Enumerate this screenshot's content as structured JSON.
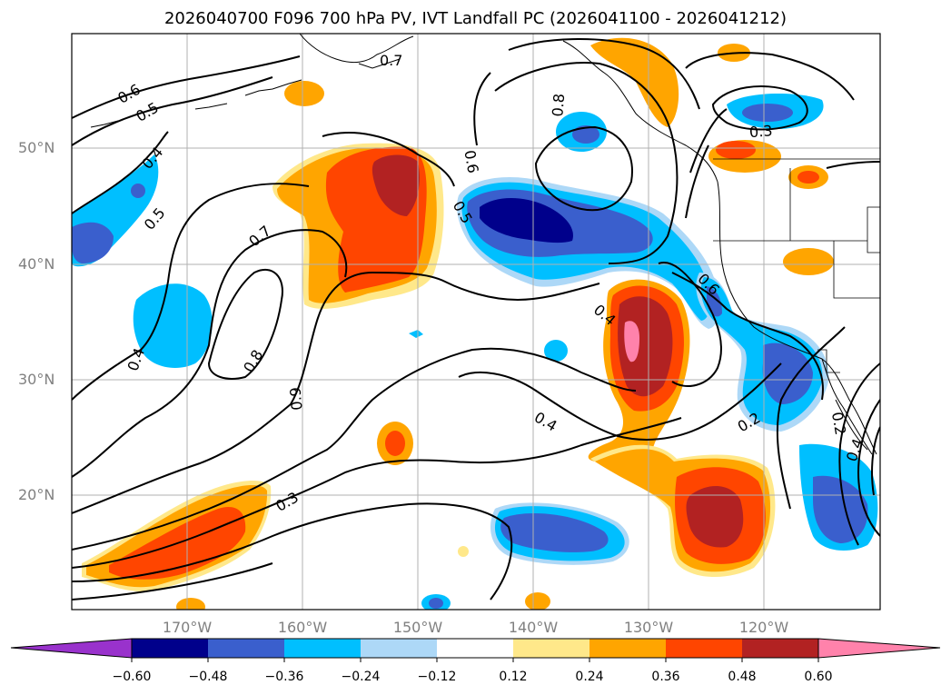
{
  "title": "2026040700 F096 700 hPa PV, IVT Landfall PC (2026041100 - 2026041212)",
  "lat_labels": [
    "50°N",
    "40°N",
    "30°N",
    "20°N"
  ],
  "lon_labels": [
    "170°W",
    "160°W",
    "150°W",
    "140°W",
    "130°W",
    "120°W"
  ],
  "colorbar": {
    "ticks": [
      "−0.60",
      "−0.48",
      "−0.36",
      "−0.24",
      "−0.12",
      "0.12",
      "0.24",
      "0.36",
      "0.48",
      "0.60"
    ],
    "colors": [
      "#9932cc",
      "#00008b",
      "#3a5fcd",
      "#00bfff",
      "#add8f7",
      "#ffffff",
      "#ffe88a",
      "#ffa500",
      "#ff4500",
      "#b22222",
      "#ff82ab"
    ]
  },
  "contour_labels": [
    "0.6",
    "0.5",
    "0.4",
    "0.5",
    "0.7",
    "0.8",
    "0.4",
    "0.9",
    "0.3",
    "0.8",
    "0.6",
    "0.5",
    "0.4",
    "0.6",
    "0.4",
    "0.2",
    "0.3",
    "0.2",
    "0.4",
    "0.7"
  ]
}
